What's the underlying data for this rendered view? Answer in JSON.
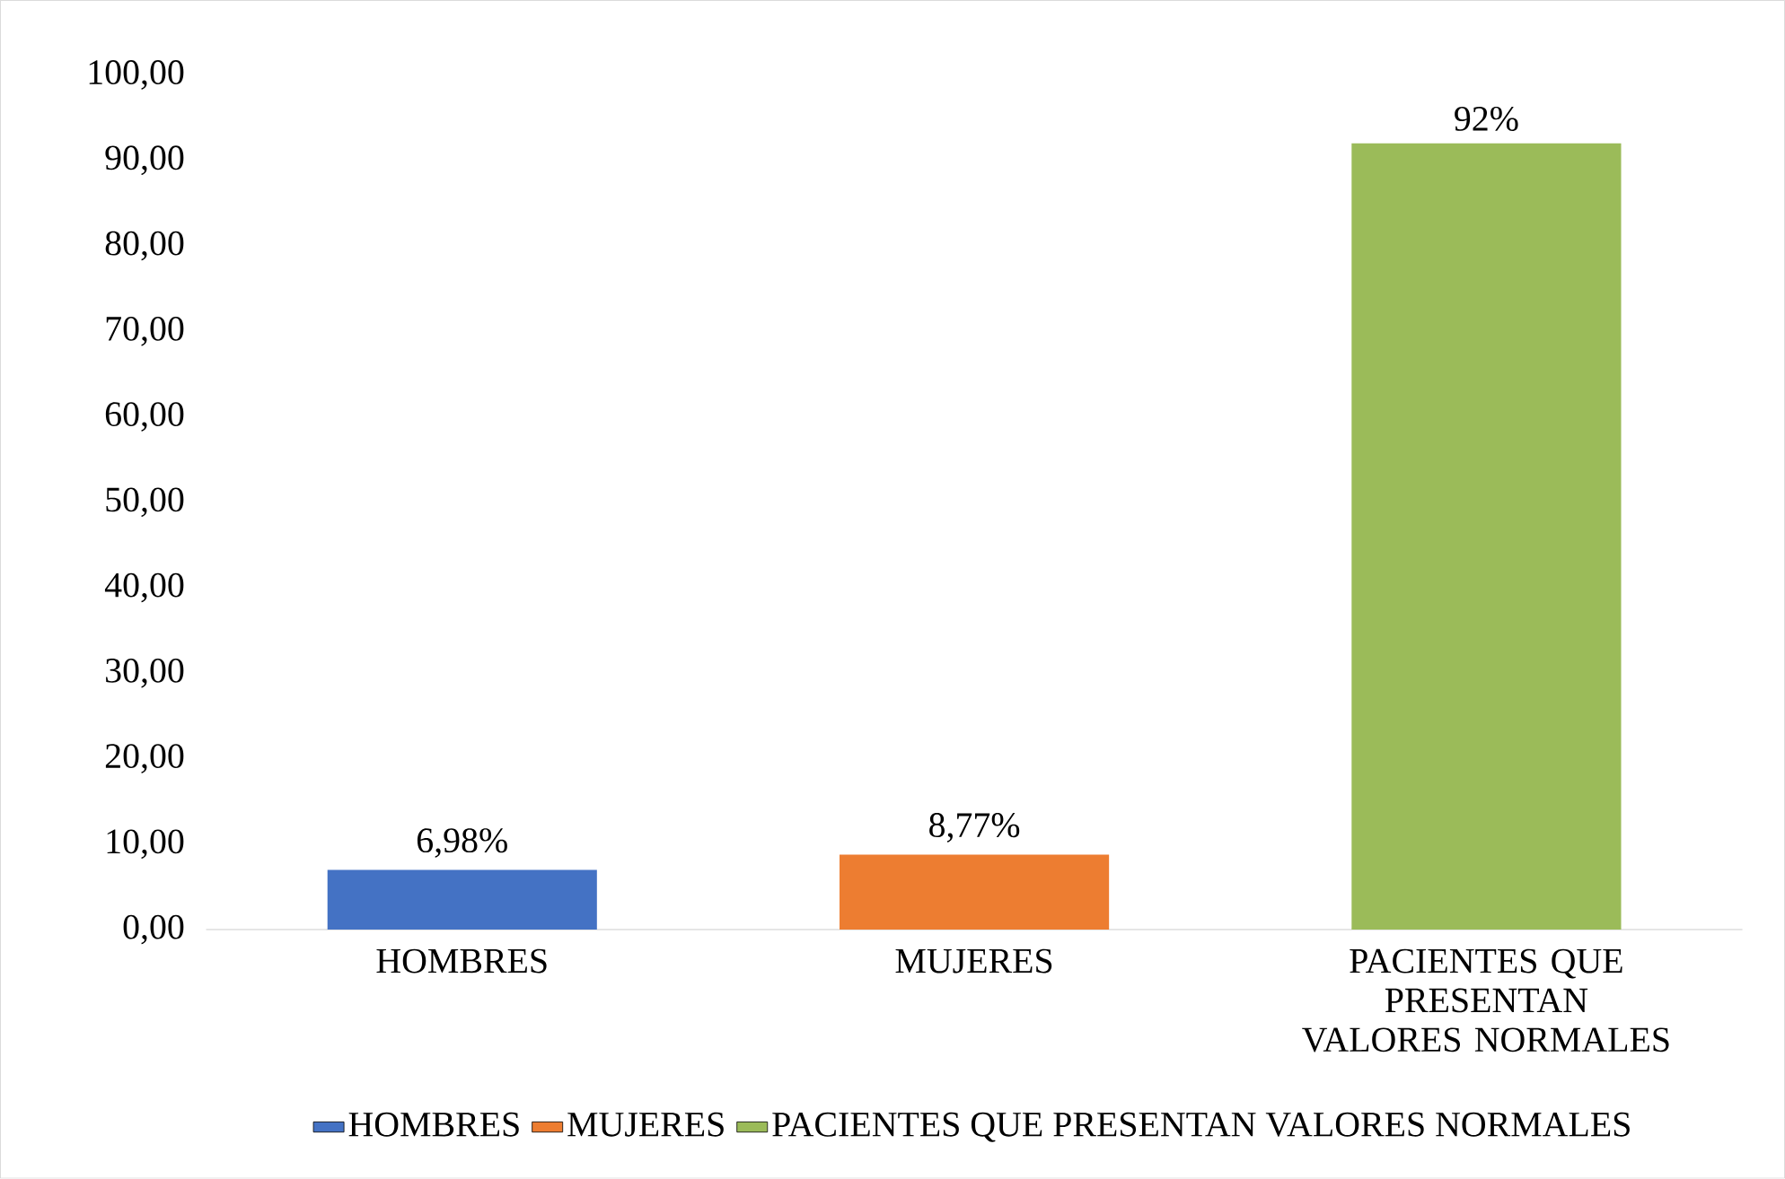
{
  "chart_data": {
    "type": "bar",
    "categories": [
      "HOMBRES",
      "MUJERES",
      "PACIENTES QUE PRESENTAN VALORES NORMALES"
    ],
    "series": [
      {
        "name": "HOMBRES",
        "color": "#4472c4",
        "values": [
          6.98,
          null,
          null
        ],
        "value_labels": [
          "6,98%",
          null,
          null
        ]
      },
      {
        "name": "MUJERES",
        "color": "#ed7d31",
        "values": [
          null,
          8.77,
          null
        ],
        "value_labels": [
          null,
          "8,77%",
          null
        ]
      },
      {
        "name": "PACIENTES QUE PRESENTAN VALORES NORMALES",
        "color": "#9bbb59",
        "values": [
          null,
          null,
          92
        ],
        "value_labels": [
          null,
          null,
          "92%"
        ]
      }
    ],
    "ylim": [
      0,
      100
    ],
    "yticks": [
      {
        "value": 0,
        "label": "0,00"
      },
      {
        "value": 10,
        "label": "10,00"
      },
      {
        "value": 20,
        "label": "20,00"
      },
      {
        "value": 30,
        "label": "30,00"
      },
      {
        "value": 40,
        "label": "40,00"
      },
      {
        "value": 50,
        "label": "50,00"
      },
      {
        "value": 60,
        "label": "60,00"
      },
      {
        "value": 70,
        "label": "70,00"
      },
      {
        "value": 80,
        "label": "80,00"
      },
      {
        "value": 90,
        "label": "90,00"
      },
      {
        "value": 100,
        "label": "100,00"
      }
    ],
    "grid": false,
    "legend": "bottom"
  }
}
